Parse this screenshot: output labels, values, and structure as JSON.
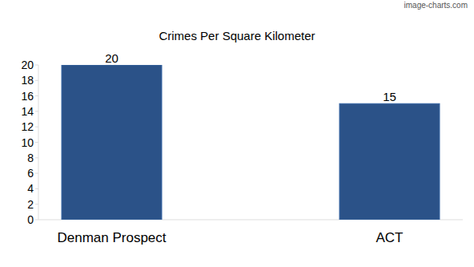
{
  "chart_data": {
    "type": "bar",
    "title": "Crimes Per Square Kilometer",
    "annotations": [
      "image-charts.com"
    ],
    "categories": [
      "Denman Prospect",
      "ACT"
    ],
    "values": [
      20,
      15
    ],
    "color": "#2b5288",
    "ylim": [
      0,
      20
    ],
    "yticks": [
      0,
      2,
      4,
      6,
      8,
      10,
      12,
      14,
      16,
      18,
      20
    ],
    "grid": false,
    "data_labels": true
  }
}
